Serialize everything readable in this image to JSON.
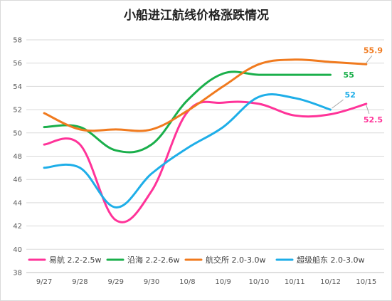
{
  "chart_data": {
    "type": "line",
    "title": "小船进江航线价格涨跌情况",
    "xlabel": "",
    "ylabel": "",
    "categories": [
      "9/27",
      "9/28",
      "9/29",
      "9/30",
      "10/8",
      "10/9",
      "10/10",
      "10/11",
      "10/12",
      "10/15"
    ],
    "ylim": [
      38,
      58
    ],
    "yticks": [
      38,
      40,
      42,
      44,
      46,
      48,
      50,
      52,
      54,
      56,
      58
    ],
    "grid": true,
    "legend_position": "bottom",
    "series": [
      {
        "name": "易航 2.2-2.5w",
        "color": "#FF3399",
        "values": [
          49.0,
          49.0,
          42.5,
          45.0,
          51.8,
          52.6,
          52.5,
          51.5,
          51.6,
          52.5
        ],
        "end_label": "52.5"
      },
      {
        "name": "沿海 2.2-2.6w",
        "color": "#1AAF4B",
        "values": [
          50.5,
          50.5,
          48.5,
          49.0,
          52.8,
          55.1,
          55.0,
          55.0,
          55.0,
          null
        ],
        "end_label": "55"
      },
      {
        "name": "航交所 2.0-3.0w",
        "color": "#F07A1E",
        "values": [
          51.7,
          50.3,
          50.3,
          50.3,
          51.9,
          54.0,
          55.9,
          56.3,
          56.1,
          55.9
        ],
        "end_label": "55.9"
      },
      {
        "name": "超级船东 2.0-3.0w",
        "color": "#1EAEE8",
        "values": [
          47.0,
          47.0,
          43.6,
          46.5,
          48.7,
          50.5,
          53.1,
          53.0,
          52.0,
          null
        ],
        "end_label": "52"
      }
    ]
  }
}
